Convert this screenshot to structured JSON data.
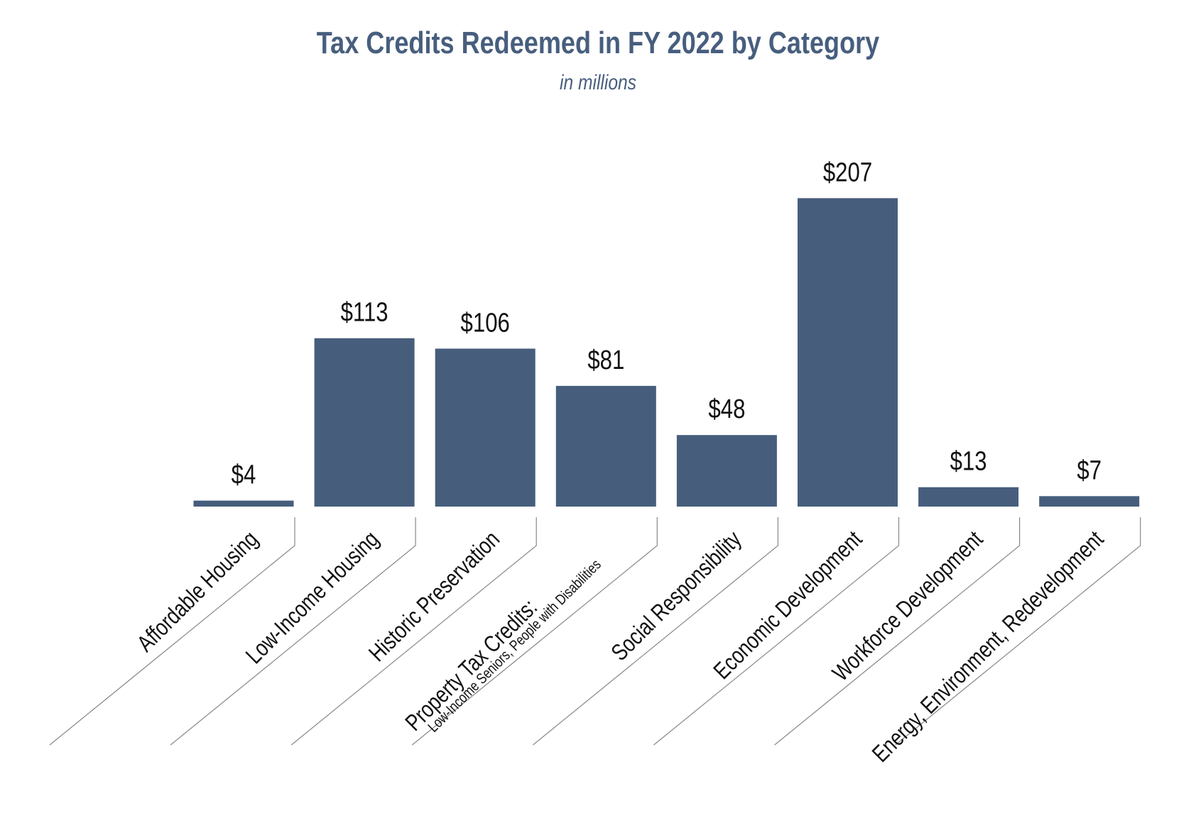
{
  "chart_data": {
    "type": "bar",
    "title": "Tax Credits Redeemed in FY 2022 by Category",
    "subtitle": "in millions",
    "categories": [
      "Affordable Housing",
      "Low-Income Housing",
      "Historic Preservation",
      "Property Tax Credits:",
      "Social Responsibility",
      "Economic Development",
      "Workforce Development",
      "Energy,  Environment, Redevelopment"
    ],
    "category_sublabels": [
      null,
      null,
      null,
      "Low-Income Seniors, People with Disabilities",
      null,
      null,
      null,
      null
    ],
    "values": [
      4,
      113,
      106,
      81,
      48,
      207,
      13,
      7
    ],
    "value_labels": [
      "$4",
      "$113",
      "$106",
      "$81",
      "$48",
      "$207",
      "$13",
      "$7"
    ],
    "color": "#465e7c"
  }
}
